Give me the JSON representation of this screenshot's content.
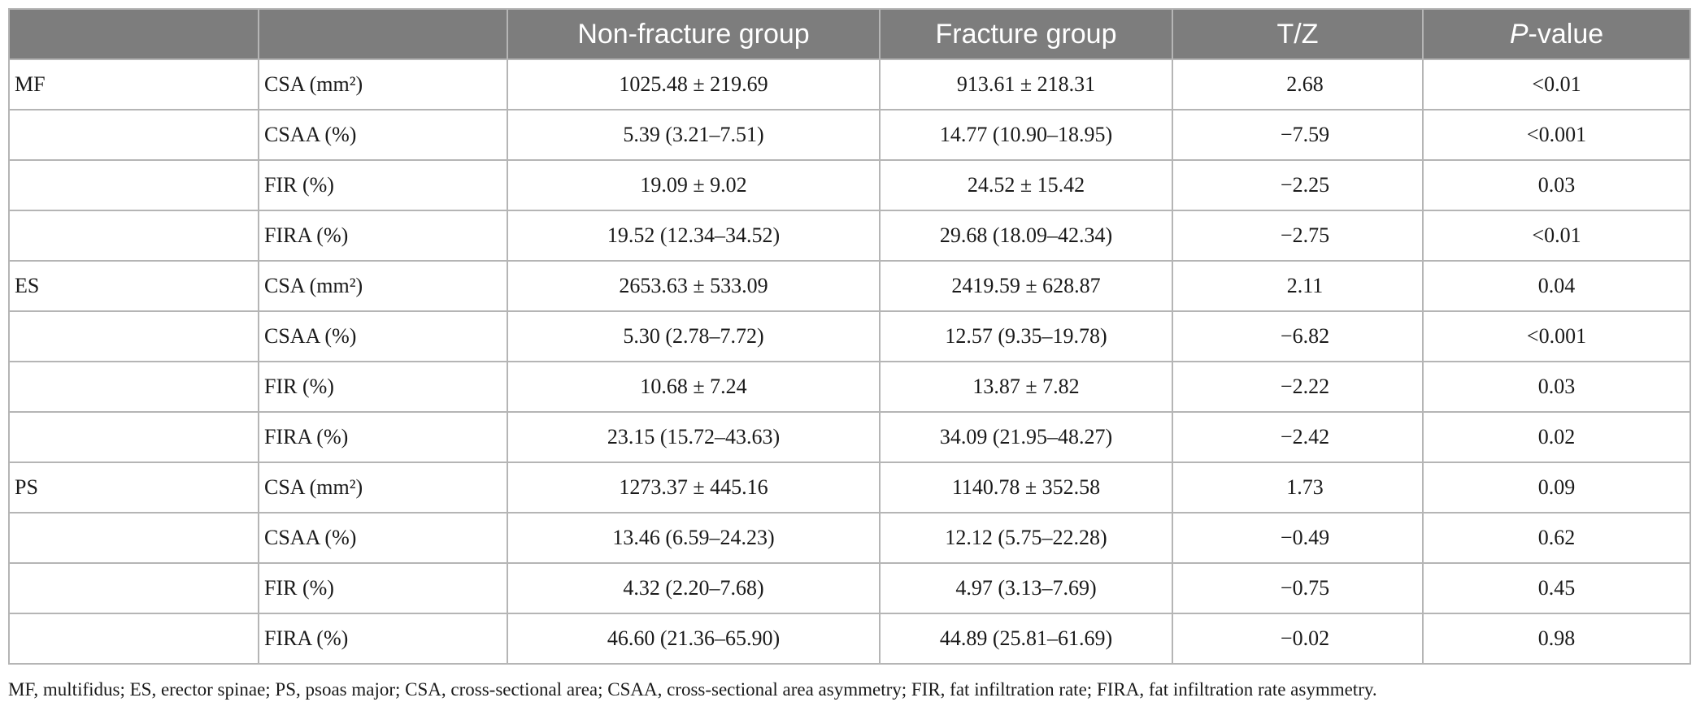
{
  "table": {
    "headers": {
      "col0": "",
      "col1": "",
      "non_fracture": "Non-fracture group",
      "fracture": "Fracture group",
      "tz": "T/Z",
      "p_prefix": "P",
      "p_suffix": "-value"
    },
    "rows": [
      {
        "group": "MF",
        "measure": "CSA (mm²)",
        "non_fracture": "1025.48 ± 219.69",
        "fracture": "913.61 ± 218.31",
        "tz": "2.68",
        "p": "<0.01"
      },
      {
        "group": "",
        "measure": "CSAA (%)",
        "non_fracture": "5.39 (3.21–7.51)",
        "fracture": "14.77 (10.90–18.95)",
        "tz": "−7.59",
        "p": "<0.001"
      },
      {
        "group": "",
        "measure": "FIR (%)",
        "non_fracture": "19.09 ± 9.02",
        "fracture": "24.52 ± 15.42",
        "tz": "−2.25",
        "p": "0.03"
      },
      {
        "group": "",
        "measure": "FIRA (%)",
        "non_fracture": "19.52 (12.34–34.52)",
        "fracture": "29.68 (18.09–42.34)",
        "tz": "−2.75",
        "p": "<0.01"
      },
      {
        "group": "ES",
        "measure": "CSA (mm²)",
        "non_fracture": "2653.63 ± 533.09",
        "fracture": "2419.59 ± 628.87",
        "tz": "2.11",
        "p": "0.04"
      },
      {
        "group": "",
        "measure": "CSAA (%)",
        "non_fracture": "5.30 (2.78–7.72)",
        "fracture": "12.57 (9.35–19.78)",
        "tz": "−6.82",
        "p": "<0.001"
      },
      {
        "group": "",
        "measure": "FIR (%)",
        "non_fracture": "10.68 ± 7.24",
        "fracture": "13.87 ± 7.82",
        "tz": "−2.22",
        "p": "0.03"
      },
      {
        "group": "",
        "measure": "FIRA (%)",
        "non_fracture": "23.15 (15.72–43.63)",
        "fracture": "34.09 (21.95–48.27)",
        "tz": "−2.42",
        "p": "0.02"
      },
      {
        "group": "PS",
        "measure": "CSA (mm²)",
        "non_fracture": "1273.37 ± 445.16",
        "fracture": "1140.78 ± 352.58",
        "tz": "1.73",
        "p": "0.09"
      },
      {
        "group": "",
        "measure": "CSAA (%)",
        "non_fracture": "13.46 (6.59–24.23)",
        "fracture": "12.12 (5.75–22.28)",
        "tz": "−0.49",
        "p": "0.62"
      },
      {
        "group": "",
        "measure": "FIR (%)",
        "non_fracture": "4.32 (2.20–7.68)",
        "fracture": "4.97 (3.13–7.69)",
        "tz": "−0.75",
        "p": "0.45"
      },
      {
        "group": "",
        "measure": "FIRA (%)",
        "non_fracture": "46.60 (21.36–65.90)",
        "fracture": "44.89 (25.81–61.69)",
        "tz": "−0.02",
        "p": "0.98"
      }
    ]
  },
  "footnote": "MF, multifidus; ES, erector spinae; PS, psoas major; CSA, cross-sectional area; CSAA, cross-sectional area asymmetry; FIR, fat infiltration rate; FIRA, fat infiltration rate asymmetry."
}
